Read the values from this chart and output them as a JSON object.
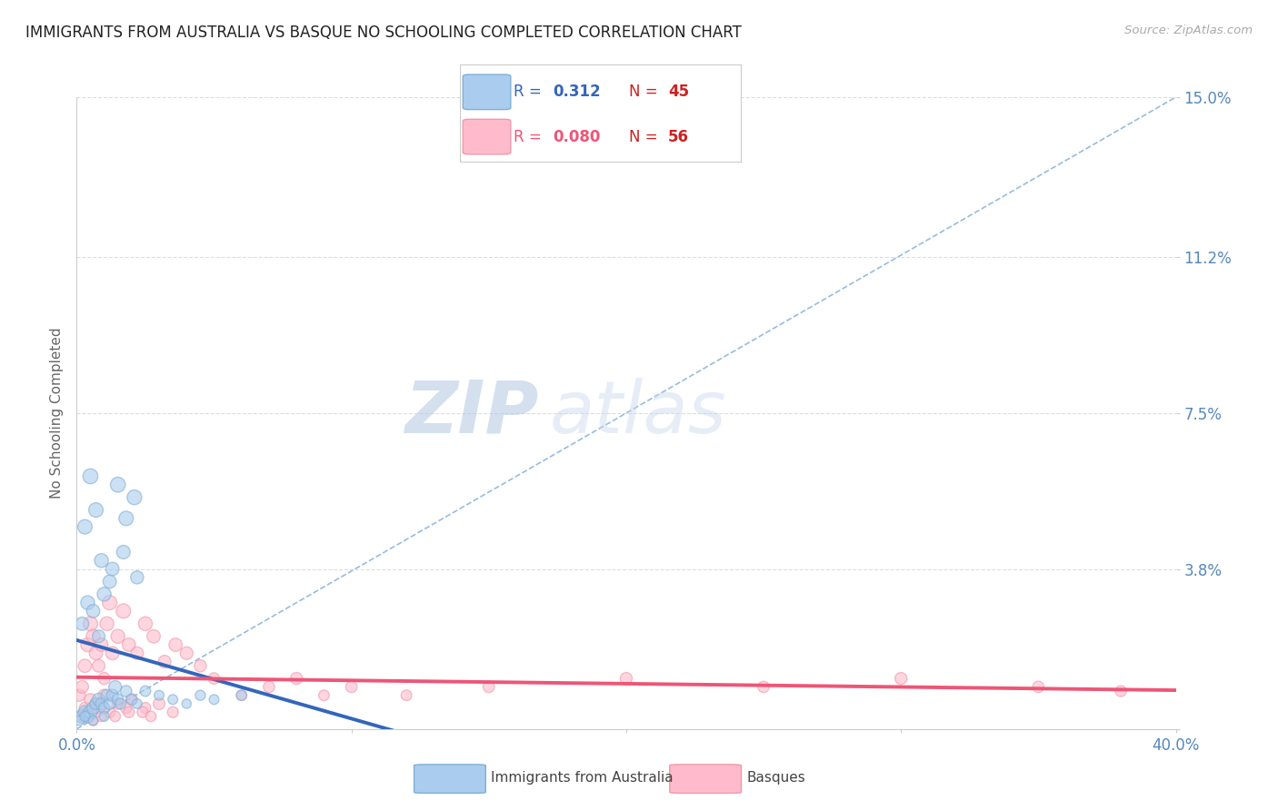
{
  "title": "IMMIGRANTS FROM AUSTRALIA VS BASQUE NO SCHOOLING COMPLETED CORRELATION CHART",
  "source_text": "Source: ZipAtlas.com",
  "ylabel": "No Schooling Completed",
  "xlim": [
    0.0,
    0.4
  ],
  "ylim": [
    0.0,
    0.15
  ],
  "yticks": [
    0.0,
    0.038,
    0.075,
    0.112,
    0.15
  ],
  "ytick_labels": [
    "",
    "3.8%",
    "7.5%",
    "11.2%",
    "15.0%"
  ],
  "xticks": [
    0.0,
    0.1,
    0.2,
    0.3,
    0.4
  ],
  "xtick_labels": [
    "0.0%",
    "",
    "",
    "",
    "40.0%"
  ],
  "title_color": "#222222",
  "title_fontsize": 12,
  "axis_color": "#5588bb",
  "watermark_zip": "ZIP",
  "watermark_atlas": "atlas",
  "watermark_color": "#c8d8ee",
  "series": [
    {
      "name": "Immigrants from Australia",
      "color": "#7fafd4",
      "fill_color": "#aaccee",
      "R": 0.312,
      "N": 45,
      "trend_color": "#3366bb",
      "x": [
        0.002,
        0.003,
        0.004,
        0.005,
        0.006,
        0.007,
        0.008,
        0.009,
        0.01,
        0.011,
        0.012,
        0.013,
        0.014,
        0.015,
        0.016,
        0.018,
        0.02,
        0.022,
        0.025,
        0.03,
        0.035,
        0.04,
        0.045,
        0.05,
        0.06,
        0.003,
        0.005,
        0.007,
        0.009,
        0.012,
        0.015,
        0.018,
        0.021,
        0.002,
        0.004,
        0.006,
        0.008,
        0.01,
        0.013,
        0.017,
        0.022,
        0.001,
        0.003,
        0.006,
        0.01
      ],
      "y": [
        0.003,
        0.004,
        0.003,
        0.004,
        0.005,
        0.006,
        0.007,
        0.006,
        0.005,
        0.008,
        0.006,
        0.008,
        0.01,
        0.007,
        0.006,
        0.009,
        0.007,
        0.006,
        0.009,
        0.008,
        0.007,
        0.006,
        0.008,
        0.007,
        0.008,
        0.048,
        0.06,
        0.052,
        0.04,
        0.035,
        0.058,
        0.05,
        0.055,
        0.025,
        0.03,
        0.028,
        0.022,
        0.032,
        0.038,
        0.042,
        0.036,
        0.002,
        0.003,
        0.002,
        0.003
      ],
      "sizes": [
        120,
        110,
        100,
        110,
        100,
        90,
        100,
        90,
        80,
        90,
        80,
        90,
        100,
        80,
        70,
        80,
        70,
        60,
        70,
        60,
        60,
        55,
        65,
        60,
        65,
        130,
        140,
        130,
        120,
        110,
        140,
        130,
        135,
        110,
        120,
        110,
        100,
        120,
        110,
        115,
        105,
        60,
        65,
        55,
        60
      ]
    },
    {
      "name": "Basques",
      "color": "#ee99aa",
      "fill_color": "#ffbbcc",
      "R": 0.08,
      "N": 56,
      "trend_color": "#ee5577",
      "x": [
        0.001,
        0.002,
        0.003,
        0.004,
        0.005,
        0.006,
        0.007,
        0.008,
        0.009,
        0.01,
        0.011,
        0.012,
        0.013,
        0.015,
        0.017,
        0.019,
        0.022,
        0.025,
        0.028,
        0.032,
        0.036,
        0.04,
        0.045,
        0.05,
        0.06,
        0.07,
        0.08,
        0.09,
        0.1,
        0.12,
        0.15,
        0.2,
        0.25,
        0.3,
        0.35,
        0.38,
        0.003,
        0.005,
        0.007,
        0.01,
        0.015,
        0.02,
        0.025,
        0.002,
        0.004,
        0.008,
        0.012,
        0.018,
        0.024,
        0.03,
        0.006,
        0.009,
        0.014,
        0.019,
        0.027,
        0.035
      ],
      "y": [
        0.008,
        0.01,
        0.015,
        0.02,
        0.025,
        0.022,
        0.018,
        0.015,
        0.02,
        0.012,
        0.025,
        0.03,
        0.018,
        0.022,
        0.028,
        0.02,
        0.018,
        0.025,
        0.022,
        0.016,
        0.02,
        0.018,
        0.015,
        0.012,
        0.008,
        0.01,
        0.012,
        0.008,
        0.01,
        0.008,
        0.01,
        0.012,
        0.01,
        0.012,
        0.01,
        0.009,
        0.005,
        0.007,
        0.006,
        0.008,
        0.006,
        0.007,
        0.005,
        0.003,
        0.004,
        0.005,
        0.004,
        0.005,
        0.004,
        0.006,
        0.002,
        0.003,
        0.003,
        0.004,
        0.003,
        0.004
      ],
      "sizes": [
        90,
        100,
        110,
        120,
        130,
        120,
        110,
        100,
        110,
        90,
        120,
        130,
        110,
        120,
        130,
        110,
        100,
        120,
        110,
        100,
        110,
        100,
        90,
        80,
        70,
        80,
        90,
        70,
        80,
        70,
        80,
        90,
        80,
        90,
        80,
        75,
        80,
        90,
        80,
        90,
        80,
        85,
        75,
        70,
        80,
        85,
        75,
        80,
        75,
        85,
        65,
        70,
        70,
        75,
        70,
        75
      ]
    }
  ],
  "diagonal_line": {
    "color": "#99bbdd",
    "style": "--",
    "lw": 1.2
  },
  "background_color": "#ffffff",
  "grid_color": "#dddddd",
  "legend_R_color_blue": "#3366bb",
  "legend_R_color_pink": "#ee5577",
  "legend_N_color": "#cc2222"
}
